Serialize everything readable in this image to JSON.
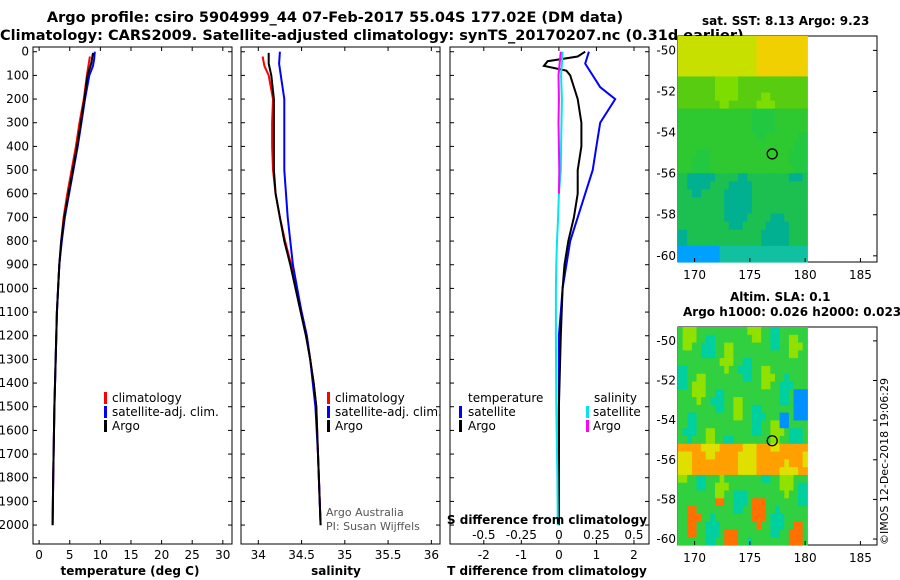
{
  "titles": {
    "line1": "Argo profile: csiro 5904999_44 07-Feb-2017 55.04S 177.02E (DM data)",
    "line2": "Climatology: CARS2009. Satellite-adjusted climatology: synTS_20170207.nc (0.31d earlier)"
  },
  "colors": {
    "climatology": "#ff0000",
    "satellite": "#0000ff",
    "argo": "#000000",
    "sat_s": "#00e5ee",
    "argo_s": "#ff00ff"
  },
  "depth_ticks": [
    "0",
    "100",
    "200",
    "300",
    "400",
    "500",
    "600",
    "700",
    "800",
    "900",
    "1000",
    "1100",
    "1200",
    "1300",
    "1400",
    "1500",
    "1600",
    "1700",
    "1800",
    "1900",
    "2000"
  ],
  "chart_data": [
    {
      "type": "line",
      "panel": "temperature",
      "xlabel": "temperature (deg C)",
      "xlim": [
        -1,
        31.5
      ],
      "xticks": [
        "0",
        "5",
        "10",
        "15",
        "20",
        "25",
        "30"
      ],
      "ylim": [
        2080,
        -20
      ],
      "legend": [
        "climatology",
        "satellite-adj. clim.",
        "Argo"
      ],
      "series": [
        {
          "name": "climatology",
          "depth": [
            20,
            100,
            200,
            300,
            400,
            500,
            600,
            700,
            800,
            900,
            1000,
            1100,
            1200,
            1500,
            1800,
            2000
          ],
          "values": [
            8.3,
            7.8,
            7.3,
            6.6,
            6.0,
            5.3,
            4.6,
            4.0,
            3.6,
            3.3,
            3.1,
            2.9,
            2.8,
            2.5,
            2.3,
            2.2
          ]
        },
        {
          "name": "satellite-adj. clim.",
          "depth": [
            0,
            30,
            60,
            100,
            200,
            300,
            400,
            500,
            600,
            700,
            800,
            900,
            1000,
            1100,
            1200,
            1500,
            1800,
            2000
          ],
          "values": [
            9.1,
            9.0,
            8.8,
            8.2,
            7.5,
            6.9,
            6.3,
            5.6,
            4.9,
            4.2,
            3.7,
            3.3,
            3.1,
            2.9,
            2.8,
            2.5,
            2.3,
            2.2
          ]
        },
        {
          "name": "Argo",
          "depth": [
            5,
            20,
            50,
            100,
            200,
            300,
            400,
            500,
            600,
            700,
            800,
            900,
            1000,
            1100,
            1200,
            1500,
            1800,
            2000
          ],
          "values": [
            8.8,
            8.7,
            8.5,
            7.9,
            7.4,
            6.8,
            6.2,
            5.5,
            4.8,
            4.1,
            3.6,
            3.3,
            3.1,
            2.9,
            2.8,
            2.5,
            2.3,
            2.2
          ]
        }
      ]
    },
    {
      "type": "line",
      "panel": "salinity",
      "xlabel": "salinity",
      "xlim": [
        33.8,
        36.1
      ],
      "xticks": [
        "34",
        "34.5",
        "35",
        "35.5",
        "36"
      ],
      "ylim": [
        2080,
        -20
      ],
      "legend": [
        "climatology",
        "satellite-adj. clim.",
        "Argo"
      ],
      "annotations": [
        "Argo Australia",
        "PI: Susan Wijffels"
      ],
      "series": [
        {
          "name": "climatology",
          "depth": [
            20,
            60,
            100,
            200,
            300,
            400,
            500,
            600,
            700,
            800,
            900,
            1000,
            1100,
            1200,
            1300,
            1400,
            1500,
            1700,
            2000
          ],
          "values": [
            34.05,
            34.07,
            34.12,
            34.17,
            34.16,
            34.16,
            34.17,
            34.2,
            34.25,
            34.31,
            34.38,
            34.44,
            34.5,
            34.56,
            34.6,
            34.64,
            34.67,
            34.69,
            34.72
          ]
        },
        {
          "name": "satellite-adj. clim.",
          "depth": [
            0,
            50,
            100,
            200,
            300,
            400,
            500,
            600,
            700,
            800,
            900,
            1000,
            1100,
            1200,
            1300,
            1400,
            1500,
            1700,
            2000
          ],
          "values": [
            34.25,
            34.24,
            34.26,
            34.3,
            34.3,
            34.3,
            34.3,
            34.32,
            34.34,
            34.37,
            34.4,
            34.45,
            34.5,
            34.56,
            34.6,
            34.63,
            34.66,
            34.69,
            34.72
          ]
        },
        {
          "name": "Argo",
          "depth": [
            5,
            50,
            100,
            200,
            300,
            400,
            500,
            600,
            700,
            800,
            900,
            1000,
            1100,
            1200,
            1300,
            1400,
            1500,
            1700,
            2000
          ],
          "values": [
            34.12,
            34.12,
            34.15,
            34.18,
            34.18,
            34.18,
            34.18,
            34.2,
            34.25,
            34.3,
            34.37,
            34.43,
            34.49,
            34.55,
            34.6,
            34.64,
            34.67,
            34.69,
            34.72
          ]
        }
      ]
    },
    {
      "type": "line",
      "panel": "difference",
      "xlabel": "T difference from climatology",
      "xlabel2": "S difference from climatology",
      "xlim": [
        -2.9,
        2.4
      ],
      "xticks": [
        "-2",
        "-1",
        "0",
        "1",
        "2"
      ],
      "xticks2": [
        "-0.5",
        "-0.25",
        "0",
        "0.25",
        "0.5"
      ],
      "ylim": [
        2080,
        -20
      ],
      "legend_left_title": "temperature",
      "legend_right_title": "salinity",
      "legend_left": [
        "satellite",
        "Argo"
      ],
      "legend_right": [
        "satellite",
        "Argo"
      ],
      "series": [
        {
          "name": "T satellite",
          "depth": [
            0,
            50,
            100,
            150,
            200,
            300,
            400,
            500,
            600,
            700,
            800,
            900,
            1000,
            1100,
            1200,
            1500,
            1800,
            2000
          ],
          "values": [
            0.8,
            0.7,
            0.9,
            1.1,
            1.5,
            1.1,
            1.0,
            0.9,
            0.7,
            0.5,
            0.3,
            0.2,
            0.1,
            0.05,
            0.0,
            0.0,
            0.0,
            0.0
          ]
        },
        {
          "name": "T Argo",
          "depth": [
            0,
            20,
            40,
            60,
            80,
            100,
            200,
            300,
            400,
            500,
            600,
            700,
            800,
            900,
            1000,
            1200,
            1500,
            1800,
            2000
          ],
          "values": [
            0.7,
            0.5,
            -0.3,
            -0.4,
            0.2,
            0.3,
            0.5,
            0.6,
            0.6,
            0.5,
            0.5,
            0.4,
            0.25,
            0.15,
            0.1,
            0.05,
            0.0,
            0.0,
            0.0
          ]
        },
        {
          "name": "S satellite",
          "depth": [
            0,
            50,
            100,
            200,
            300,
            400,
            500,
            600,
            700,
            800,
            900,
            1000,
            1200,
            1500,
            1800,
            2000
          ],
          "values": [
            0.1,
            0.08,
            0.06,
            0.08,
            0.07,
            0.06,
            0.05,
            0.0,
            -0.02,
            -0.05,
            -0.07,
            -0.08,
            -0.08,
            -0.07,
            -0.04,
            -0.03
          ]
        },
        {
          "name": "S Argo",
          "depth": [
            0,
            50,
            100,
            200,
            300,
            400,
            500,
            600
          ],
          "values": [
            0.05,
            0.02,
            -0.01,
            0.0,
            -0.01,
            0.0,
            0.01,
            0.0
          ]
        }
      ]
    }
  ],
  "maps": {
    "sst_title": "sat. SST: 8.13 Argo: 9.23",
    "sla_title1": "Altim. SLA: 0.1",
    "sla_title2": "Argo h1000: 0.026 h2000: 0.023",
    "lon_ticks": [
      "170",
      "175",
      "180",
      "185"
    ],
    "lat_ticks": [
      "-50",
      "-52",
      "-54",
      "-56",
      "-58",
      "-60"
    ],
    "argo_position": {
      "lon": 177.02,
      "lat": -55.04
    }
  },
  "credit": "©IMOS 12-Dec-2018 19:06:29"
}
